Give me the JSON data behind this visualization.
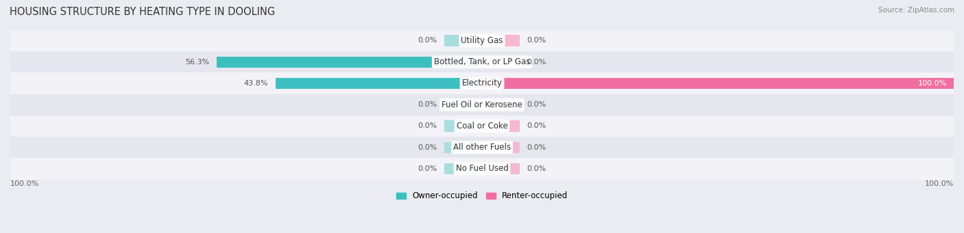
{
  "title": "HOUSING STRUCTURE BY HEATING TYPE IN DOOLING",
  "source": "Source: ZipAtlas.com",
  "categories": [
    "Utility Gas",
    "Bottled, Tank, or LP Gas",
    "Electricity",
    "Fuel Oil or Kerosene",
    "Coal or Coke",
    "All other Fuels",
    "No Fuel Used"
  ],
  "owner_values": [
    0.0,
    56.3,
    43.8,
    0.0,
    0.0,
    0.0,
    0.0
  ],
  "renter_values": [
    0.0,
    0.0,
    100.0,
    0.0,
    0.0,
    0.0,
    0.0
  ],
  "owner_color": "#3dbfbf",
  "owner_stub_color": "#a8dede",
  "renter_color": "#f06fa0",
  "renter_stub_color": "#f4b8d0",
  "owner_label": "Owner-occupied",
  "renter_label": "Renter-occupied",
  "bar_height": 0.52,
  "stub_value": 8,
  "background_color": "#ebebf2",
  "row_colors": [
    "#f2f2f7",
    "#e6e6ef"
  ],
  "xlim": [
    -100,
    100
  ],
  "title_fontsize": 10.5,
  "label_fontsize": 8.5,
  "value_fontsize": 8.0,
  "axis_label_fontsize": 8,
  "source_fontsize": 7.5,
  "cat_label_fontsize": 8.5
}
